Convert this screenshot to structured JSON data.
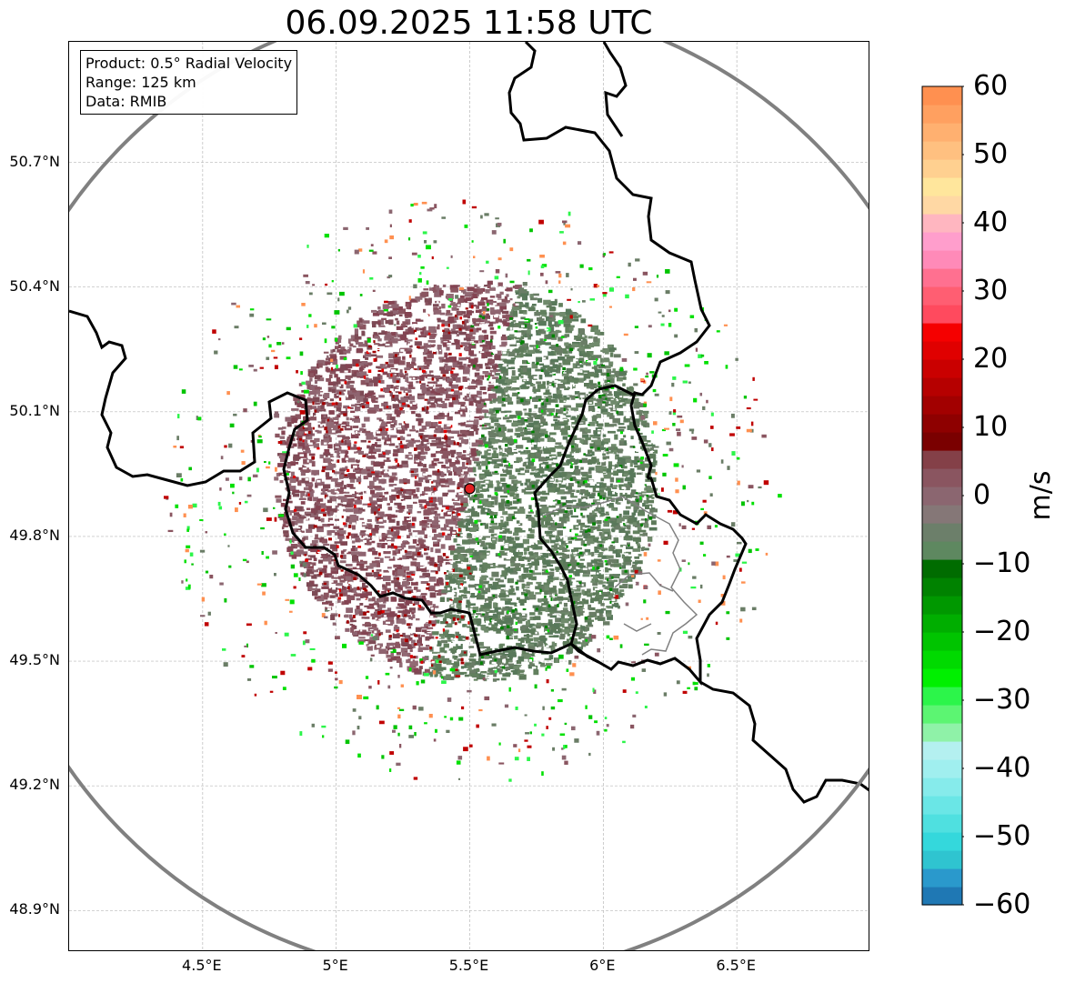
{
  "title": "06.09.2025 11:58 UTC",
  "info_box": {
    "product": "Product: 0.5° Radial Velocity",
    "range": "Range: 125 km",
    "data_source": "Data: RMIB"
  },
  "map": {
    "lon_range": [
      4.0,
      7.0
    ],
    "lat_range": [
      48.8,
      50.99
    ],
    "x_ticks": [
      "4.5°E",
      "5°E",
      "5.5°E",
      "6°E",
      "6.5°E"
    ],
    "x_tick_values": [
      4.5,
      5.0,
      5.5,
      6.0,
      6.5
    ],
    "y_ticks": [
      "50.7°N",
      "50.4°N",
      "50.1°N",
      "49.8°N",
      "49.5°N",
      "49.2°N",
      "48.9°N"
    ],
    "y_tick_values": [
      50.7,
      50.4,
      50.1,
      49.8,
      49.5,
      49.2,
      48.9
    ],
    "radar_site": {
      "lon": 5.5,
      "lat": 49.915
    },
    "range_ring_color": "#808080",
    "radar_color": "#e02020"
  },
  "colorbar": {
    "unit": "m/s",
    "min": -60,
    "max": 60,
    "tick_labels": [
      "60",
      "50",
      "40",
      "30",
      "20",
      "10",
      "0",
      "−10",
      "−20",
      "−30",
      "−40",
      "−50",
      "−60"
    ],
    "tick_values": [
      60,
      50,
      40,
      30,
      20,
      10,
      0,
      -10,
      -20,
      -30,
      -40,
      -50,
      -60
    ],
    "colors": [
      "#1f78b4",
      "#2a99cc",
      "#2fc4d0",
      "#34d8dc",
      "#4fe0e0",
      "#6ae6e6",
      "#86ebeb",
      "#a0efef",
      "#b4f0f0",
      "#8ff2a8",
      "#5cf572",
      "#2cf54a",
      "#00f000",
      "#00da00",
      "#00c400",
      "#00ae00",
      "#009800",
      "#008200",
      "#006c00",
      "#5e8860",
      "#6c7f6a",
      "#857777",
      "#8b6670",
      "#8a5560",
      "#844048",
      "#7a0000",
      "#8e0000",
      "#a20000",
      "#b60000",
      "#ca0000",
      "#e00000",
      "#f50000",
      "#ff4a5e",
      "#ff5e72",
      "#ff7090",
      "#ff8ab8",
      "#ff9ecc",
      "#ffb6c0",
      "#ffd8a4",
      "#ffe69c",
      "#ffd090",
      "#ffc080",
      "#ffb070",
      "#ffa060",
      "#ff9050"
    ]
  }
}
